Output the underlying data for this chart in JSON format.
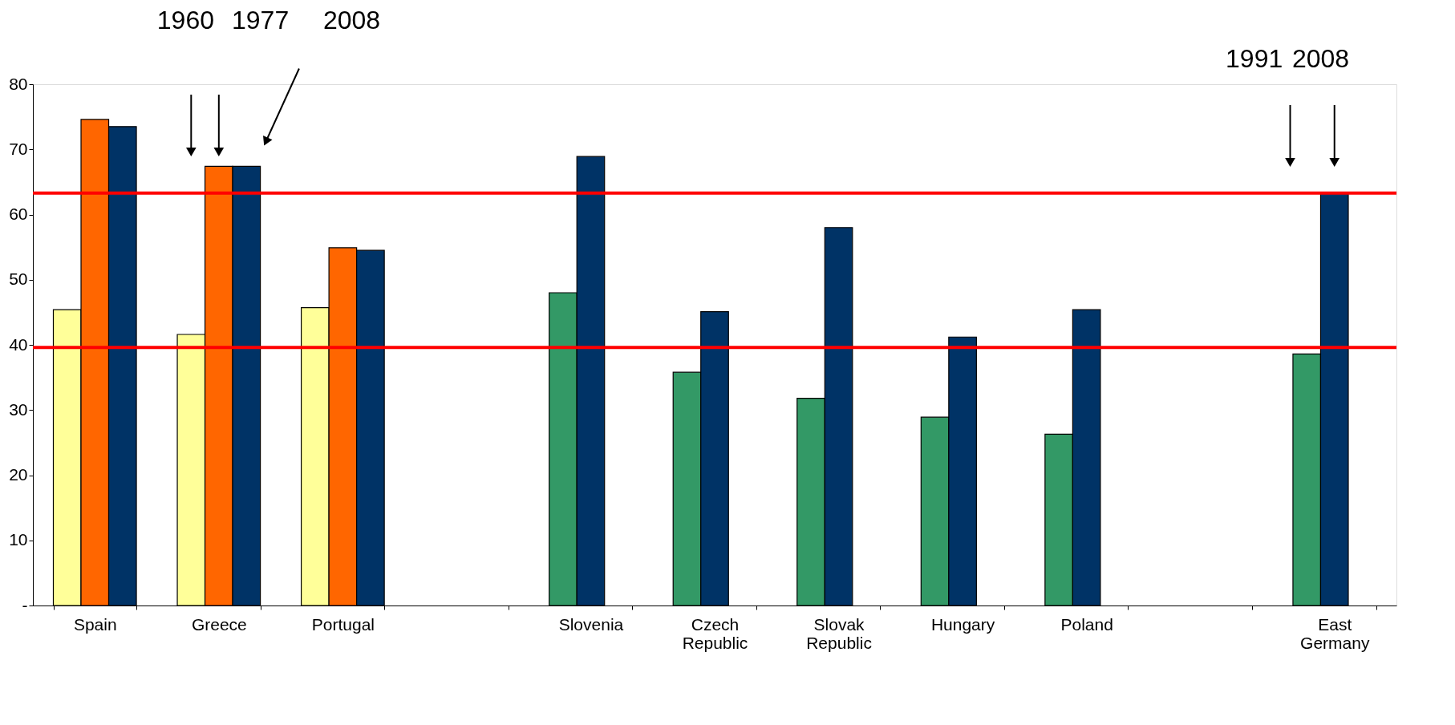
{
  "chart_data": {
    "type": "bar",
    "categories": [
      "Spain",
      "Greece",
      "Portugal",
      null,
      "Slovenia",
      "Czech Republic",
      "Slovak Republic",
      "Hungary",
      "Poland",
      null,
      "East Germany"
    ],
    "series": [
      {
        "values": [
          45.4,
          41.6,
          45.7,
          null,
          48.0,
          35.8,
          31.8,
          28.9,
          26.3,
          null,
          38.6
        ],
        "colors": [
          "#ffff99",
          "#ffff99",
          "#ffff99",
          null,
          "#339966",
          "#339966",
          "#339966",
          "#339966",
          "#339966",
          null,
          "#339966"
        ]
      },
      {
        "values": [
          74.6,
          67.4,
          54.9,
          null,
          68.9,
          45.1,
          58.0,
          41.2,
          45.4,
          null,
          63.3
        ],
        "colors": [
          "#ff6600",
          "#ff6600",
          "#ff6600",
          null,
          "#003366",
          "#003366",
          "#003366",
          "#003366",
          "#003366",
          null,
          "#003366"
        ]
      },
      {
        "values": [
          73.5,
          67.4,
          54.5,
          null,
          null,
          null,
          null,
          null,
          null,
          null,
          null
        ],
        "colors": [
          "#003366",
          "#003366",
          "#003366",
          null,
          null,
          null,
          null,
          null,
          null,
          null,
          null
        ]
      }
    ],
    "ylim": [
      0,
      80
    ],
    "yticks": [
      {
        "value": 0,
        "label": "-"
      },
      10,
      20,
      30,
      40,
      50,
      60,
      70,
      80
    ],
    "ref_lines": [
      {
        "axis": "y",
        "value": 63.3,
        "color": "#ff0000",
        "line_style": "solid"
      },
      {
        "axis": "y",
        "value": 39.6,
        "color": "#ff0000",
        "line_style": "solid"
      }
    ],
    "annotations": [
      "1960",
      "1977",
      "2008",
      "1991",
      "2008"
    ],
    "grid": false
  }
}
